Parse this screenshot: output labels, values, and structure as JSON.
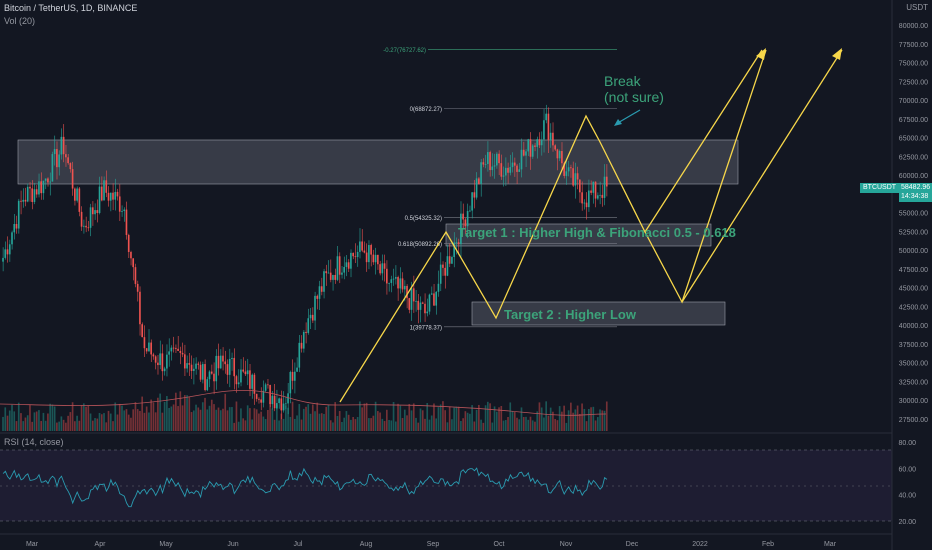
{
  "header": {
    "symbol_line": "Bitcoin / TetherUS, 1D, BINANCE",
    "volume_label": "Vol (20)",
    "rsi_label": "RSI (14, close)",
    "currency": "USDT"
  },
  "price_axis": {
    "ticks": [
      "80000.00",
      "77500.00",
      "75000.00",
      "72500.00",
      "70000.00",
      "67500.00",
      "65000.00",
      "62500.00",
      "60000.00",
      "57500.00",
      "55000.00",
      "52500.00",
      "50000.00",
      "47500.00",
      "45000.00",
      "42500.00",
      "40000.00",
      "37500.00",
      "35000.00",
      "32500.00",
      "30000.00",
      "27500.00"
    ],
    "current_symbol": "BTCUSDT",
    "current_price": "58482.96",
    "countdown": "14:34:38"
  },
  "rsi_axis": {
    "ticks": [
      "80.00",
      "60.00",
      "40.00",
      "20.00"
    ]
  },
  "time_axis": {
    "labels": [
      "Mar",
      "Apr",
      "May",
      "Jun",
      "Jul",
      "Aug",
      "Sep",
      "Oct",
      "Nov",
      "Dec",
      "2022",
      "Feb",
      "Mar"
    ]
  },
  "fib_levels": [
    {
      "label": "-0.27(76727.62)",
      "price": 76727.62
    },
    {
      "label": "0(68872.27)",
      "price": 68872.27
    },
    {
      "label": "0.5(54325.32)",
      "price": 54325.32
    },
    {
      "label": "0.618(50892.26)",
      "price": 50892.26
    },
    {
      "label": "1(39778.37)",
      "price": 39778.37
    }
  ],
  "annotations": {
    "break_line1": "Break",
    "break_line2": "(not sure)",
    "target1": "Target 1 : Higher High & Fibonacci 0.5 - 0.618",
    "target2": "Target 2 : Higher Low"
  },
  "colors": {
    "background": "#131722",
    "up": "#26a69a",
    "down": "#ef5350",
    "annotation_line": "#f7d74a",
    "annotation_text": "#3ca37a",
    "rsi": "#2a9bb0"
  },
  "chart_data": {
    "type": "candlestick",
    "x_range": [
      "Feb 2021",
      "Mar 2022"
    ],
    "ylim": [
      25000,
      82500
    ],
    "close_path": [
      [
        "Mar",
        49000
      ],
      [
        "Mar",
        57000
      ],
      [
        "Apr",
        59000
      ],
      [
        "Apr",
        64000
      ],
      [
        "Apr",
        53000
      ],
      [
        "May",
        58000
      ],
      [
        "May",
        56000
      ],
      [
        "May",
        37000
      ],
      [
        "May",
        35000
      ],
      [
        "Jun",
        36000
      ],
      [
        "Jun",
        33000
      ],
      [
        "Jun",
        35000
      ],
      [
        "Jul",
        33000
      ],
      [
        "Jul",
        31000
      ],
      [
        "Jul",
        30000
      ],
      [
        "Aug",
        40000
      ],
      [
        "Aug",
        46000
      ],
      [
        "Aug",
        49000
      ],
      [
        "Sep",
        50000
      ],
      [
        "Sep",
        46000
      ],
      [
        "Sep",
        44000
      ],
      [
        "Sep",
        41500
      ],
      [
        "Oct",
        48000
      ],
      [
        "Oct",
        55000
      ],
      [
        "Oct",
        62000
      ],
      [
        "Oct",
        61000
      ],
      [
        "Nov",
        63000
      ],
      [
        "Nov",
        67000
      ],
      [
        "Nov",
        60000
      ],
      [
        "Nov",
        57000
      ],
      [
        "Nov",
        58482.96
      ]
    ],
    "resistance_zone": [
      58800,
      64700
    ],
    "support_zone": [
      40000,
      43000
    ],
    "rsi_levels": [
      70,
      30
    ]
  }
}
